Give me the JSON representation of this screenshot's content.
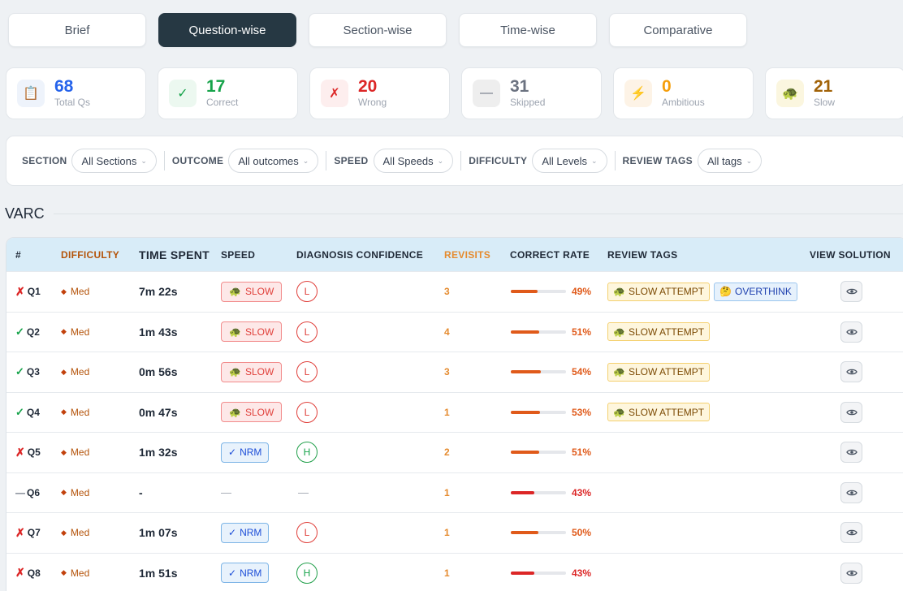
{
  "tabs": [
    {
      "label": "Brief",
      "active": false
    },
    {
      "label": "Question-wise",
      "active": true
    },
    {
      "label": "Section-wise",
      "active": false
    },
    {
      "label": "Time-wise",
      "active": false
    },
    {
      "label": "Comparative",
      "active": false
    }
  ],
  "stats": [
    {
      "value": "68",
      "label": "Total Qs",
      "icon": "clipboard-icon",
      "color": "#2563eb",
      "bg": "#eef3fb",
      "glyph": "📋"
    },
    {
      "value": "17",
      "label": "Correct",
      "icon": "check-icon",
      "color": "#16a34a",
      "bg": "#ecf8f0",
      "glyph": "✓"
    },
    {
      "value": "20",
      "label": "Wrong",
      "icon": "cross-icon",
      "color": "#dc2626",
      "bg": "#fdeeee",
      "glyph": "✗"
    },
    {
      "value": "31",
      "label": "Skipped",
      "icon": "dash-icon",
      "color": "#6b7280",
      "bg": "#eeeeee",
      "glyph": "—"
    },
    {
      "value": "0",
      "label": "Ambitious",
      "icon": "lightning-icon",
      "color": "#f59e0b",
      "bg": "#fdf3e6",
      "glyph": "⚡"
    },
    {
      "value": "21",
      "label": "Slow",
      "icon": "turtle-icon",
      "color": "#a16207",
      "bg": "#fbf6df",
      "glyph": "🐢"
    }
  ],
  "filters": [
    {
      "label": "SECTION",
      "value": "All Sections"
    },
    {
      "label": "OUTCOME",
      "value": "All outcomes"
    },
    {
      "label": "SPEED",
      "value": "All Speeds"
    },
    {
      "label": "DIFFICULTY",
      "value": "All Levels"
    },
    {
      "label": "REVIEW TAGS",
      "value": "All tags"
    }
  ],
  "section": {
    "title": "VARC"
  },
  "table": {
    "headers": [
      "#",
      "DIFFICULTY",
      "TIME SPENT",
      "SPEED",
      "DIAGNOSIS CONFIDENCE",
      "REVISITS",
      "CORRECT RATE",
      "REVIEW TAGS",
      "VIEW SOLUTION"
    ],
    "rows": [
      {
        "id": "Q1",
        "outcome": "wrong",
        "mark": "✗",
        "difficulty": "Med",
        "time": "7m 22s",
        "speed": "SLOW",
        "conf": "L",
        "revisits": "3",
        "rate": 49,
        "rate_label": "49%",
        "tags": [
          "SLOW ATTEMPT",
          "OVERTHINK"
        ]
      },
      {
        "id": "Q2",
        "outcome": "correct",
        "mark": "✓",
        "difficulty": "Med",
        "time": "1m 43s",
        "speed": "SLOW",
        "conf": "L",
        "revisits": "4",
        "rate": 51,
        "rate_label": "51%",
        "tags": [
          "SLOW ATTEMPT"
        ]
      },
      {
        "id": "Q3",
        "outcome": "correct",
        "mark": "✓",
        "difficulty": "Med",
        "time": "0m 56s",
        "speed": "SLOW",
        "conf": "L",
        "revisits": "3",
        "rate": 54,
        "rate_label": "54%",
        "tags": [
          "SLOW ATTEMPT"
        ]
      },
      {
        "id": "Q4",
        "outcome": "correct",
        "mark": "✓",
        "difficulty": "Med",
        "time": "0m 47s",
        "speed": "SLOW",
        "conf": "L",
        "revisits": "1",
        "rate": 53,
        "rate_label": "53%",
        "tags": [
          "SLOW ATTEMPT"
        ]
      },
      {
        "id": "Q5",
        "outcome": "wrong",
        "mark": "✗",
        "difficulty": "Med",
        "time": "1m 32s",
        "speed": "NRM",
        "conf": "H",
        "revisits": "2",
        "rate": 51,
        "rate_label": "51%",
        "tags": []
      },
      {
        "id": "Q6",
        "outcome": "skipped",
        "mark": "—",
        "difficulty": "Med",
        "time": "-",
        "speed": "—",
        "conf": "—",
        "revisits": "1",
        "rate": 43,
        "rate_label": "43%",
        "tags": []
      },
      {
        "id": "Q7",
        "outcome": "wrong",
        "mark": "✗",
        "difficulty": "Med",
        "time": "1m 07s",
        "speed": "NRM",
        "conf": "L",
        "revisits": "1",
        "rate": 50,
        "rate_label": "50%",
        "tags": []
      },
      {
        "id": "Q8",
        "outcome": "wrong",
        "mark": "✗",
        "difficulty": "Med",
        "time": "1m 51s",
        "speed": "NRM",
        "conf": "H",
        "revisits": "1",
        "rate": 43,
        "rate_label": "43%",
        "tags": []
      }
    ]
  },
  "colors": {
    "accent_dark": "#263843",
    "header_blue": "#d8ecf8",
    "slow_red": "#e0403b",
    "nrm_blue": "#1d4ed8"
  }
}
